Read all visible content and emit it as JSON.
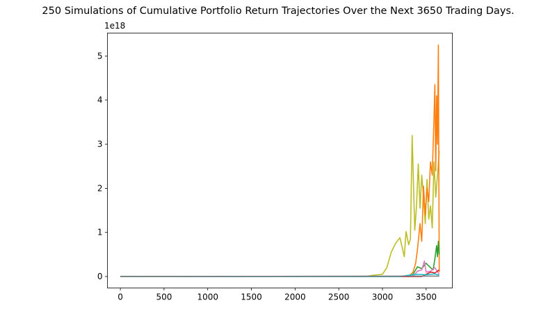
{
  "chart_data": {
    "type": "line",
    "title": "250 Simulations of Cumulative Portfolio Return Trajectories Over the Next 3650 Trading Days.",
    "xlabel": "",
    "ylabel": "",
    "y_offset_label": "1e18",
    "xlim": [
      -148,
      3800
    ],
    "ylim": [
      -0.26,
      5.52
    ],
    "y_scale_multiplier": 1e+18,
    "x_ticks": [
      0,
      500,
      1000,
      1500,
      2000,
      2500,
      3000,
      3500
    ],
    "x_tick_labels": [
      "0",
      "500",
      "1000",
      "1500",
      "2000",
      "2500",
      "3000",
      "3500"
    ],
    "y_ticks": [
      0,
      1,
      2,
      3,
      4,
      5
    ],
    "y_tick_labels": [
      "0",
      "1",
      "2",
      "3",
      "4",
      "5"
    ],
    "grid": false,
    "legend": "none",
    "series": [
      {
        "color": "#bcbd22",
        "x": [
          0,
          2800,
          2900,
          3000,
          3050,
          3100,
          3150,
          3200,
          3250,
          3270,
          3300,
          3320,
          3340,
          3370,
          3390,
          3410,
          3430,
          3450,
          3470,
          3490,
          3510,
          3530,
          3550,
          3570,
          3590,
          3610,
          3630,
          3650
        ],
        "y": [
          0,
          0.0,
          0.03,
          0.05,
          0.2,
          0.55,
          0.75,
          0.88,
          0.45,
          1.02,
          0.72,
          0.85,
          3.2,
          1.05,
          1.6,
          2.55,
          1.55,
          2.3,
          1.8,
          1.2,
          2.2,
          1.3,
          1.6,
          1.1,
          2.6,
          1.8,
          2.3,
          2.85
        ]
      },
      {
        "color": "#ff7f0e",
        "x": [
          0,
          3300,
          3350,
          3380,
          3400,
          3430,
          3450,
          3470,
          3490,
          3510,
          3530,
          3550,
          3570,
          3590,
          3600,
          3610,
          3620,
          3630,
          3640,
          3650
        ],
        "y": [
          0,
          0.0,
          0.1,
          0.3,
          0.6,
          1.2,
          0.8,
          2.05,
          1.4,
          2.0,
          1.7,
          2.6,
          2.3,
          3.6,
          4.35,
          2.4,
          4.1,
          3.0,
          5.25,
          0.1
        ]
      },
      {
        "color": "#2ca02c",
        "x": [
          0,
          3300,
          3350,
          3400,
          3450,
          3500,
          3550,
          3580,
          3600,
          3620,
          3630,
          3640,
          3650
        ],
        "y": [
          0,
          0.0,
          0.05,
          0.22,
          0.18,
          0.3,
          0.2,
          0.15,
          0.4,
          0.7,
          0.45,
          0.8,
          0.5
        ]
      },
      {
        "color": "#e377c2",
        "x": [
          0,
          3350,
          3400,
          3450,
          3480,
          3500,
          3550,
          3600,
          3650
        ],
        "y": [
          0,
          0.0,
          0.12,
          0.15,
          0.35,
          0.1,
          0.12,
          0.2,
          0.05
        ]
      },
      {
        "color": "#d62728",
        "x": [
          0,
          3450,
          3500,
          3550,
          3600,
          3650
        ],
        "y": [
          0,
          0.0,
          0.05,
          0.1,
          0.08,
          0.15
        ]
      },
      {
        "color": "#17becf",
        "x": [
          0,
          3200,
          3300,
          3400,
          3500,
          3600,
          3650
        ],
        "y": [
          0,
          0.0,
          0.03,
          0.05,
          0.04,
          0.06,
          0.03
        ]
      },
      {
        "color": "#7f7f7f",
        "x": [
          0,
          3650
        ],
        "y": [
          0,
          0.01
        ]
      }
    ]
  }
}
